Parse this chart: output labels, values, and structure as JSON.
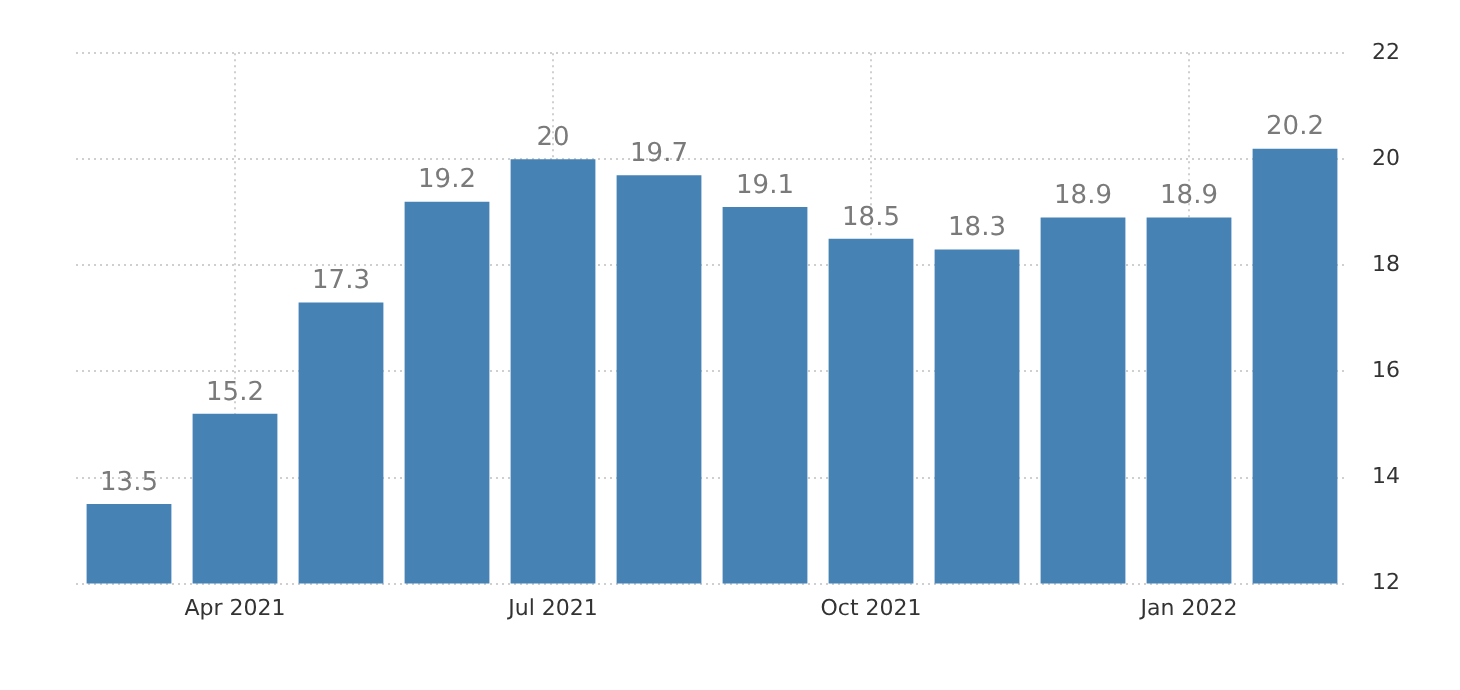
{
  "chart_data": {
    "type": "bar",
    "categories": [
      null,
      "Apr 2021",
      null,
      null,
      "Jul 2021",
      null,
      null,
      "Oct 2021",
      null,
      null,
      "Jan 2022",
      null
    ],
    "values": [
      13.5,
      15.2,
      17.3,
      19.2,
      20,
      19.7,
      19.1,
      18.5,
      18.3,
      18.9,
      18.9,
      20.2
    ],
    "color": "#4682b4",
    "ylim": [
      12,
      22
    ],
    "yticks": [
      12,
      14,
      16,
      18,
      20,
      22
    ],
    "grid": true,
    "data_labels": true,
    "legend": false
  }
}
